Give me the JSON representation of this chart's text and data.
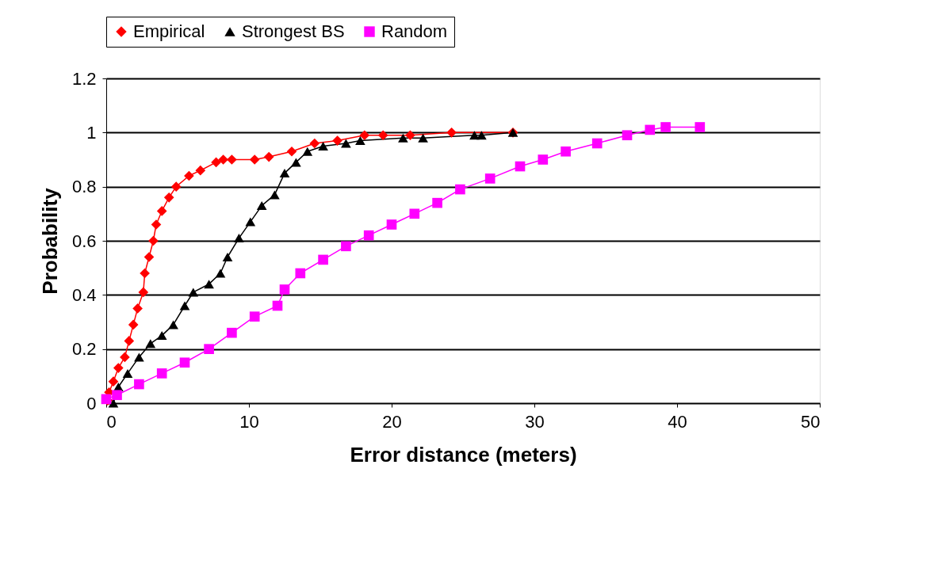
{
  "chart_data": {
    "type": "line",
    "xlabel": "Error distance (meters)",
    "ylabel": "Probability",
    "xlim": [
      0,
      50
    ],
    "xticks": [
      0,
      10,
      20,
      30,
      40,
      50
    ],
    "ylim": [
      0,
      1.2
    ],
    "yticks": [
      0,
      0.2,
      0.4,
      0.6,
      0.8,
      1,
      1.2
    ],
    "grid": "y",
    "legend": "top",
    "series": [
      {
        "name": "Empirical",
        "color": "#ff0000",
        "marker": "diamond",
        "x": [
          0.1,
          0.2,
          0.5,
          0.85,
          1.3,
          1.6,
          1.9,
          2.2,
          2.6,
          2.7,
          3.0,
          3.3,
          3.5,
          3.9,
          4.4,
          4.9,
          5.8,
          6.6,
          7.7,
          8.2,
          8.8,
          10.4,
          11.4,
          13.0,
          14.6,
          16.2,
          18.1,
          19.4,
          21.3,
          24.2,
          28.5
        ],
        "values": [
          0.01,
          0.04,
          0.08,
          0.13,
          0.17,
          0.23,
          0.29,
          0.35,
          0.41,
          0.48,
          0.54,
          0.6,
          0.66,
          0.71,
          0.76,
          0.8,
          0.84,
          0.86,
          0.89,
          0.9,
          0.9,
          0.9,
          0.91,
          0.93,
          0.96,
          0.97,
          0.99,
          0.99,
          0.99,
          1.0,
          1.0
        ]
      },
      {
        "name": "Strongest BS",
        "color": "#000000",
        "marker": "triangle",
        "x": [
          0.5,
          0.85,
          1.5,
          2.3,
          3.1,
          3.9,
          4.7,
          5.5,
          6.1,
          7.2,
          8.0,
          8.5,
          9.3,
          10.1,
          10.9,
          11.8,
          12.5,
          13.3,
          14.1,
          15.2,
          16.8,
          17.8,
          20.8,
          22.2,
          25.8,
          26.3,
          28.5
        ],
        "values": [
          0.0,
          0.06,
          0.11,
          0.17,
          0.22,
          0.25,
          0.29,
          0.36,
          0.41,
          0.44,
          0.48,
          0.54,
          0.61,
          0.67,
          0.73,
          0.77,
          0.85,
          0.89,
          0.93,
          0.95,
          0.96,
          0.97,
          0.98,
          0.98,
          0.99,
          0.99,
          1.0
        ]
      },
      {
        "name": "Random",
        "color": "#ff00ff",
        "marker": "square",
        "x": [
          0,
          0.75,
          2.3,
          3.9,
          5.5,
          7.2,
          8.8,
          10.4,
          12.0,
          12.5,
          13.6,
          15.2,
          16.8,
          18.4,
          20.0,
          21.6,
          23.2,
          24.8,
          26.9,
          29.0,
          30.6,
          32.2,
          34.4,
          36.5,
          38.1,
          39.2,
          41.6
        ],
        "values": [
          0.015,
          0.03,
          0.07,
          0.11,
          0.15,
          0.2,
          0.26,
          0.32,
          0.36,
          0.42,
          0.48,
          0.53,
          0.58,
          0.62,
          0.66,
          0.7,
          0.74,
          0.79,
          0.83,
          0.875,
          0.9,
          0.93,
          0.96,
          0.99,
          1.01,
          1.02,
          1.02
        ]
      }
    ]
  }
}
